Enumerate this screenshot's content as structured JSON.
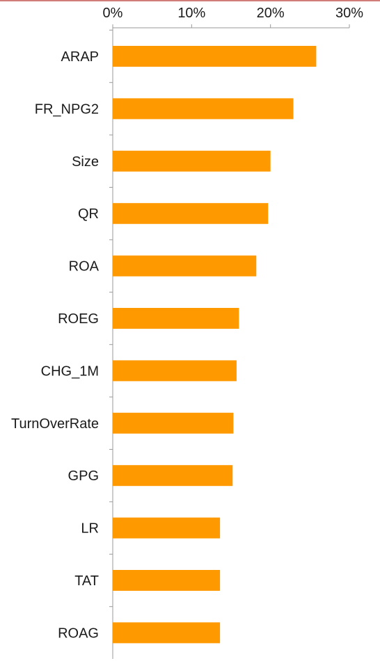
{
  "colors": {
    "bar": "#FF9900",
    "axis": "#9A9A9A",
    "top_border": "#C0504D",
    "text": "#1A1A1A"
  },
  "chart_data": {
    "type": "bar",
    "orientation": "horizontal",
    "title": "",
    "xlabel": "",
    "ylabel": "",
    "x_axis_position": "top",
    "xlim": [
      0,
      30
    ],
    "x_ticks": [
      0,
      10,
      20,
      30
    ],
    "x_tick_labels": [
      "0%",
      "10%",
      "20%",
      "30%"
    ],
    "grid": false,
    "legend": "none",
    "categories": [
      "ARAP",
      "FR_NPG2",
      "Size",
      "QR",
      "ROA",
      "ROEG",
      "CHG_1M",
      "TurnOverRate",
      "GPG",
      "LR",
      "TAT",
      "ROAG"
    ],
    "values": [
      25.8,
      22.9,
      20.0,
      19.7,
      18.2,
      16.0,
      15.7,
      15.3,
      15.2,
      13.6,
      13.6,
      13.6
    ]
  }
}
